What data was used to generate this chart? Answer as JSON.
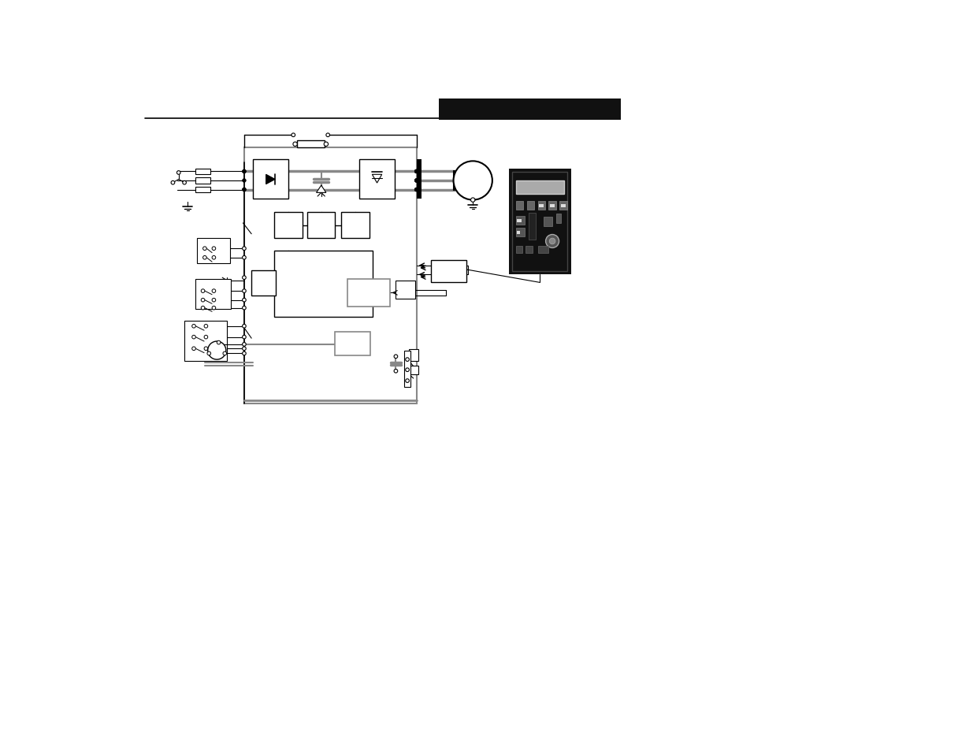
{
  "bg_color": "#ffffff",
  "lc": "#000000",
  "gray": "#888888",
  "dark": "#1a1a1a",
  "panel_bg": "#111111",
  "panel_screen": "#999999",
  "panel_btn": "#555555",
  "panel_btn2": "#777777",
  "panel_border": "#444444"
}
